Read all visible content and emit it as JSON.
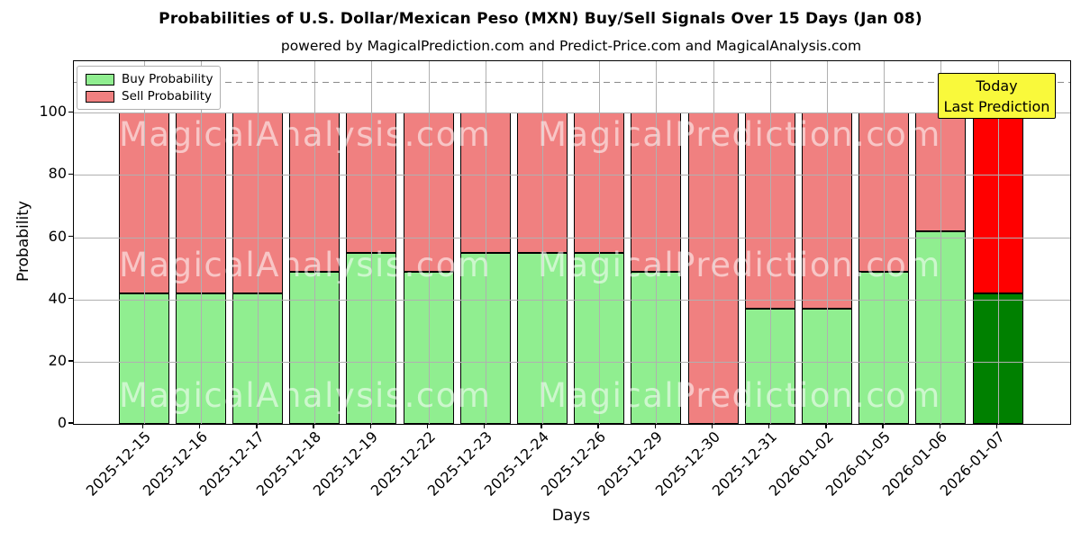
{
  "figure": {
    "title": "Probabilities of U.S. Dollar/Mexican Peso (MXN) Buy/Sell Signals Over 15 Days (Jan 08)",
    "subtitle": "powered by MagicalPrediction.com and Predict-Price.com and MagicalAnalysis.com"
  },
  "axes": {
    "xlabel": "Days",
    "ylabel": "Probability",
    "yticks": [
      0,
      20,
      40,
      60,
      80,
      100
    ],
    "ylim": [
      0,
      116.6
    ]
  },
  "legend": {
    "items": [
      {
        "label": "Buy Probability",
        "color": "#90EE90"
      },
      {
        "label": "Sell Probability",
        "color": "#F08080"
      }
    ]
  },
  "annotation_box": {
    "line1": "Today",
    "line2": "Last Prediction",
    "bg_color": "#F9F93B"
  },
  "watermarks": {
    "left_text": "MagicalAnalysis.com",
    "right_text": "MagicalPrediction.com"
  },
  "colors": {
    "buy": "#90EE90",
    "sell": "#F08080",
    "buy_today": "#008000",
    "sell_today": "#FF0000",
    "bar_edge": "#000000",
    "grid": "#b0b0b0",
    "dashed_line": "#8a8a8a"
  },
  "chart_data": {
    "type": "bar",
    "stacked": true,
    "title": "Probabilities of U.S. Dollar/Mexican Peso (MXN) Buy/Sell Signals Over 15 Days (Jan 08)",
    "xlabel": "Days",
    "ylabel": "Probability",
    "ylim": [
      0,
      116.6
    ],
    "yticks": [
      0,
      20,
      40,
      60,
      80,
      100
    ],
    "grid": true,
    "legend_position": "upper left",
    "threshold_line": {
      "y": 110,
      "style": "dashed",
      "color": "#8a8a8a"
    },
    "categories": [
      "2025-12-15",
      "2025-12-16",
      "2025-12-17",
      "2025-12-18",
      "2025-12-19",
      "2025-12-22",
      "2025-12-23",
      "2025-12-24",
      "2025-12-26",
      "2025-12-29",
      "2025-12-30",
      "2025-12-31",
      "2026-01-02",
      "2026-01-05",
      "2026-01-06",
      "2026-01-07"
    ],
    "series": [
      {
        "name": "Buy Probability",
        "values": [
          42,
          42,
          42,
          49,
          55,
          49,
          55,
          55,
          55,
          49,
          0,
          37,
          37,
          49,
          62,
          42
        ]
      },
      {
        "name": "Sell Probability",
        "values": [
          58,
          58,
          58,
          51,
          45,
          51,
          45,
          45,
          45,
          51,
          100,
          63,
          63,
          51,
          38,
          58
        ]
      }
    ],
    "today_bar": {
      "category": "2026-01-07",
      "buy": 42,
      "sell": 58
    }
  }
}
